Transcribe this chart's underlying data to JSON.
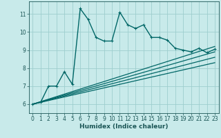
{
  "xlabel": "Humidex (Indice chaleur)",
  "bg_color": "#c8eaea",
  "plot_bg_color": "#c8eaea",
  "line_color": "#006666",
  "grid_color": "#9ecece",
  "xlim": [
    -0.5,
    23.5
  ],
  "ylim": [
    5.5,
    11.7
  ],
  "xticks": [
    0,
    1,
    2,
    3,
    4,
    5,
    6,
    7,
    8,
    9,
    10,
    11,
    12,
    13,
    14,
    15,
    16,
    17,
    18,
    19,
    20,
    21,
    22,
    23
  ],
  "yticks": [
    6,
    7,
    8,
    9,
    10,
    11
  ],
  "main_line_x": [
    0,
    1,
    2,
    3,
    4,
    5,
    6,
    7,
    8,
    9,
    10,
    11,
    12,
    13,
    14,
    15,
    16,
    17,
    18,
    19,
    20,
    21,
    22,
    23
  ],
  "main_line_y": [
    6.0,
    6.1,
    7.0,
    7.0,
    7.8,
    7.1,
    11.3,
    10.7,
    9.7,
    9.5,
    9.5,
    11.1,
    10.4,
    10.2,
    10.4,
    9.7,
    9.7,
    9.55,
    9.1,
    9.0,
    8.9,
    9.1,
    8.85,
    9.05
  ],
  "ref_lines": [
    {
      "x": [
        0,
        23
      ],
      "y": [
        6.0,
        9.2
      ]
    },
    {
      "x": [
        0,
        23
      ],
      "y": [
        6.0,
        8.9
      ]
    },
    {
      "x": [
        0,
        23
      ],
      "y": [
        6.0,
        8.6
      ]
    },
    {
      "x": [
        0,
        23
      ],
      "y": [
        6.0,
        8.3
      ]
    }
  ],
  "lw_main": 1.0,
  "lw_ref": 0.9,
  "marker_size": 3,
  "xlabel_fontsize": 6.5,
  "tick_fontsize": 5.5
}
